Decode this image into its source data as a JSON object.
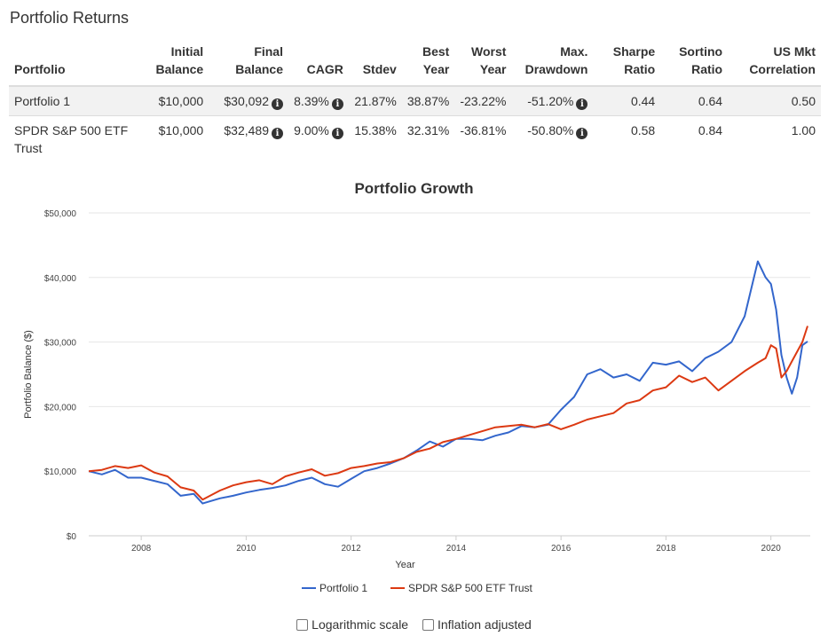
{
  "page_title": "Portfolio Returns",
  "table": {
    "headers": [
      {
        "line1": "",
        "line2": "Portfolio"
      },
      {
        "line1": "Initial",
        "line2": "Balance"
      },
      {
        "line1": "Final",
        "line2": "Balance"
      },
      {
        "line1": "",
        "line2": "CAGR"
      },
      {
        "line1": "",
        "line2": "Stdev"
      },
      {
        "line1": "Best",
        "line2": "Year"
      },
      {
        "line1": "Worst",
        "line2": "Year"
      },
      {
        "line1": "Max.",
        "line2": "Drawdown"
      },
      {
        "line1": "Sharpe",
        "line2": "Ratio"
      },
      {
        "line1": "Sortino",
        "line2": "Ratio"
      },
      {
        "line1": "US Mkt",
        "line2": "Correlation"
      }
    ],
    "rows": [
      {
        "portfolio": "Portfolio 1",
        "initial": "$10,000",
        "final": "$30,092",
        "cagr": "8.39%",
        "stdev": "21.87%",
        "best": "38.87%",
        "worst": "-23.22%",
        "drawdown": "-51.20%",
        "sharpe": "0.44",
        "sortino": "0.64",
        "corr": "0.50"
      },
      {
        "portfolio": "SPDR S&P 500 ETF Trust",
        "initial": "$10,000",
        "final": "$32,489",
        "cagr": "9.00%",
        "stdev": "15.38%",
        "best": "32.31%",
        "worst": "-36.81%",
        "drawdown": "-50.80%",
        "sharpe": "0.58",
        "sortino": "0.84",
        "corr": "1.00"
      }
    ],
    "info_glyph": "i"
  },
  "checkboxes": {
    "log_label": "Logarithmic scale",
    "inflation_label": "Inflation adjusted"
  },
  "chart_data": {
    "type": "line",
    "title": "Portfolio Growth",
    "xlabel": "Year",
    "ylabel": "Portfolio Balance ($)",
    "xlim": [
      2007.0,
      2020.75
    ],
    "ylim": [
      0,
      50000
    ],
    "x_ticks": [
      2008,
      2010,
      2012,
      2014,
      2016,
      2018,
      2020
    ],
    "y_ticks": [
      0,
      10000,
      20000,
      30000,
      40000,
      50000
    ],
    "y_tick_labels": [
      "$0",
      "$10,000",
      "$20,000",
      "$30,000",
      "$40,000",
      "$50,000"
    ],
    "grid": true,
    "legend_position": "bottom",
    "series": [
      {
        "name": "Portfolio 1",
        "color": "#3366cc",
        "x": [
          2007.0,
          2007.25,
          2007.5,
          2007.75,
          2008.0,
          2008.25,
          2008.5,
          2008.75,
          2009.0,
          2009.17,
          2009.5,
          2009.75,
          2010.0,
          2010.25,
          2010.5,
          2010.75,
          2011.0,
          2011.25,
          2011.5,
          2011.75,
          2012.0,
          2012.25,
          2012.5,
          2012.75,
          2013.0,
          2013.25,
          2013.5,
          2013.75,
          2014.0,
          2014.25,
          2014.5,
          2014.75,
          2015.0,
          2015.25,
          2015.5,
          2015.75,
          2016.0,
          2016.25,
          2016.5,
          2016.75,
          2017.0,
          2017.25,
          2017.5,
          2017.75,
          2018.0,
          2018.25,
          2018.5,
          2018.75,
          2019.0,
          2019.25,
          2019.5,
          2019.75,
          2019.9,
          2020.0,
          2020.1,
          2020.2,
          2020.3,
          2020.4,
          2020.5,
          2020.6,
          2020.7
        ],
        "y": [
          10000,
          9500,
          10200,
          9000,
          9000,
          8500,
          8000,
          6200,
          6500,
          5000,
          5800,
          6200,
          6700,
          7100,
          7400,
          7800,
          8500,
          9000,
          8000,
          7600,
          8800,
          10000,
          10500,
          11200,
          12000,
          13200,
          14600,
          13800,
          15000,
          15000,
          14800,
          15500,
          16000,
          17000,
          16800,
          17200,
          19500,
          21500,
          25000,
          25800,
          24500,
          25000,
          24000,
          26800,
          26500,
          27000,
          25500,
          27500,
          28500,
          30000,
          34000,
          42500,
          40000,
          39000,
          35000,
          28000,
          24500,
          22000,
          24500,
          29500,
          30092
        ]
      },
      {
        "name": "SPDR S&P 500 ETF Trust",
        "color": "#dc3912",
        "x": [
          2007.0,
          2007.25,
          2007.5,
          2007.75,
          2008.0,
          2008.25,
          2008.5,
          2008.75,
          2009.0,
          2009.17,
          2009.5,
          2009.75,
          2010.0,
          2010.25,
          2010.5,
          2010.75,
          2011.0,
          2011.25,
          2011.5,
          2011.75,
          2012.0,
          2012.25,
          2012.5,
          2012.75,
          2013.0,
          2013.25,
          2013.5,
          2013.75,
          2014.0,
          2014.25,
          2014.5,
          2014.75,
          2015.0,
          2015.25,
          2015.5,
          2015.75,
          2016.0,
          2016.25,
          2016.5,
          2016.75,
          2017.0,
          2017.25,
          2017.5,
          2017.75,
          2018.0,
          2018.25,
          2018.5,
          2018.75,
          2019.0,
          2019.25,
          2019.5,
          2019.75,
          2019.9,
          2020.0,
          2020.1,
          2020.2,
          2020.3,
          2020.4,
          2020.5,
          2020.6,
          2020.7
        ],
        "y": [
          10000,
          10200,
          10800,
          10500,
          10900,
          9800,
          9200,
          7500,
          7000,
          5600,
          7000,
          7800,
          8300,
          8600,
          8000,
          9200,
          9800,
          10300,
          9300,
          9700,
          10500,
          10800,
          11200,
          11400,
          12000,
          13000,
          13500,
          14500,
          15000,
          15600,
          16200,
          16800,
          17000,
          17200,
          16800,
          17300,
          16500,
          17200,
          18000,
          18500,
          19000,
          20500,
          21000,
          22500,
          23000,
          24800,
          23800,
          24500,
          22500,
          24000,
          25500,
          26800,
          27500,
          29500,
          29000,
          24500,
          25500,
          27000,
          28500,
          30000,
          32489
        ]
      }
    ]
  }
}
